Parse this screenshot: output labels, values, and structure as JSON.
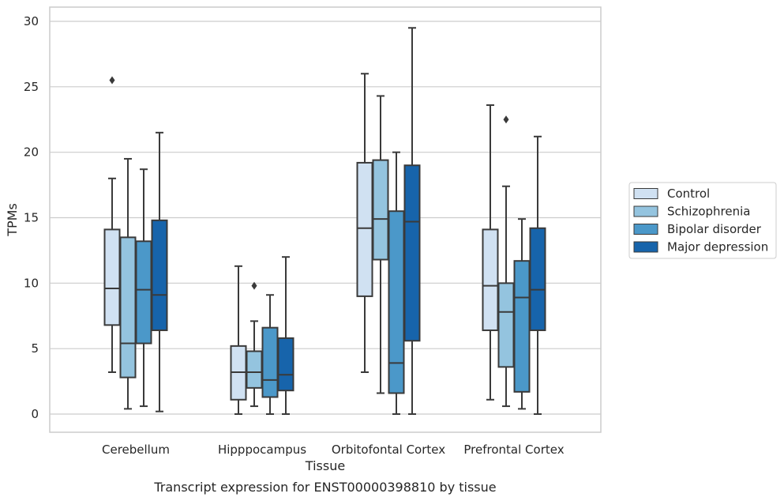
{
  "chart_data": {
    "type": "boxplot",
    "title": "",
    "caption": "Transcript expression for ENST00000398810 by tissue",
    "xlabel": "Tissue",
    "ylabel": "TPMs",
    "ylim": [
      -1.4,
      31.0
    ],
    "yticks": [
      0,
      5,
      10,
      15,
      20,
      25,
      30
    ],
    "grid": "horizontal",
    "legend_position": "right, outside",
    "categories": [
      "Cerebellum",
      "Hipppocampus",
      "Orbitofontal Cortex",
      "Prefrontal Cortex"
    ],
    "series": [
      {
        "name": "Control",
        "color": "#d0e1f2",
        "boxes": [
          {
            "whisker_low": 3.2,
            "q1": 6.8,
            "median": 9.6,
            "q3": 14.1,
            "whisker_high": 18.0,
            "outliers": [
              25.5
            ]
          },
          {
            "whisker_low": 0.0,
            "q1": 1.1,
            "median": 3.2,
            "q3": 5.2,
            "whisker_high": 11.3,
            "outliers": []
          },
          {
            "whisker_low": 3.2,
            "q1": 9.0,
            "median": 14.2,
            "q3": 19.2,
            "whisker_high": 26.0,
            "outliers": []
          },
          {
            "whisker_low": 1.1,
            "q1": 6.4,
            "median": 9.8,
            "q3": 14.1,
            "whisker_high": 23.6,
            "outliers": []
          }
        ]
      },
      {
        "name": "Schizophrenia",
        "color": "#94c4df",
        "boxes": [
          {
            "whisker_low": 0.4,
            "q1": 2.8,
            "median": 5.4,
            "q3": 13.5,
            "whisker_high": 19.5,
            "outliers": []
          },
          {
            "whisker_low": 0.6,
            "q1": 2.0,
            "median": 3.2,
            "q3": 4.8,
            "whisker_high": 7.1,
            "outliers": [
              9.8
            ]
          },
          {
            "whisker_low": 1.6,
            "q1": 11.8,
            "median": 14.9,
            "q3": 19.4,
            "whisker_high": 24.3,
            "outliers": []
          },
          {
            "whisker_low": 0.6,
            "q1": 3.6,
            "median": 7.8,
            "q3": 10.0,
            "whisker_high": 17.4,
            "outliers": [
              22.5
            ]
          }
        ]
      },
      {
        "name": "Bipolar disorder",
        "color": "#4b98c9",
        "boxes": [
          {
            "whisker_low": 0.6,
            "q1": 5.4,
            "median": 9.5,
            "q3": 13.2,
            "whisker_high": 18.7,
            "outliers": []
          },
          {
            "whisker_low": 0.0,
            "q1": 1.3,
            "median": 2.6,
            "q3": 6.6,
            "whisker_high": 9.1,
            "outliers": []
          },
          {
            "whisker_low": 0.0,
            "q1": 1.6,
            "median": 3.9,
            "q3": 15.5,
            "whisker_high": 20.0,
            "outliers": []
          },
          {
            "whisker_low": 0.4,
            "q1": 1.7,
            "median": 8.9,
            "q3": 11.7,
            "whisker_high": 14.9,
            "outliers": []
          }
        ]
      },
      {
        "name": "Major depression",
        "color": "#1764ab",
        "boxes": [
          {
            "whisker_low": 0.2,
            "q1": 6.4,
            "median": 9.1,
            "q3": 14.8,
            "whisker_high": 21.5,
            "outliers": []
          },
          {
            "whisker_low": 0.0,
            "q1": 1.8,
            "median": 3.0,
            "q3": 5.8,
            "whisker_high": 12.0,
            "outliers": []
          },
          {
            "whisker_low": 0.0,
            "q1": 5.6,
            "median": 14.7,
            "q3": 19.0,
            "whisker_high": 29.5,
            "outliers": []
          },
          {
            "whisker_low": 0.0,
            "q1": 6.4,
            "median": 9.5,
            "q3": 14.2,
            "whisker_high": 21.2,
            "outliers": []
          }
        ]
      }
    ]
  }
}
